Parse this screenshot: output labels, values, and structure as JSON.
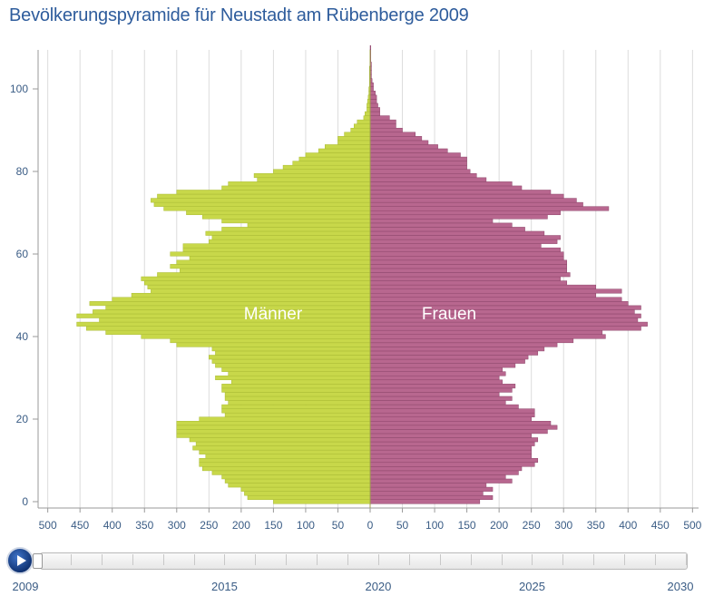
{
  "title": "Bevölkerungspyramide für Neustadt am Rübenberge 2009",
  "colors": {
    "male": "#c8d84a",
    "male_stroke": "#a9ba34",
    "female": "#b8678f",
    "female_stroke": "#8d456a",
    "axis_text": "#3a5c85",
    "grid": "#dcdcdc",
    "title": "#2e5c9c"
  },
  "chart_data": {
    "type": "bar",
    "orientation": "horizontal-pyramid",
    "title": "Bevölkerungspyramide für Neustadt am Rübenberge 2009",
    "xlim": [
      -500,
      500
    ],
    "ylim": [
      0,
      100
    ],
    "grid": true,
    "x_ticks": [
      500,
      450,
      400,
      350,
      300,
      250,
      200,
      150,
      100,
      50,
      0,
      50,
      100,
      150,
      200,
      250,
      300,
      350,
      400,
      450,
      500
    ],
    "y_ticks": [
      0,
      20,
      40,
      60,
      80,
      100
    ],
    "ages": [
      0,
      1,
      2,
      3,
      4,
      5,
      6,
      7,
      8,
      9,
      10,
      11,
      12,
      13,
      14,
      15,
      16,
      17,
      18,
      19,
      20,
      21,
      22,
      23,
      24,
      25,
      26,
      27,
      28,
      29,
      30,
      31,
      32,
      33,
      34,
      35,
      36,
      37,
      38,
      39,
      40,
      41,
      42,
      43,
      44,
      45,
      46,
      47,
      48,
      49,
      50,
      51,
      52,
      53,
      54,
      55,
      56,
      57,
      58,
      59,
      60,
      61,
      62,
      63,
      64,
      65,
      66,
      67,
      68,
      69,
      70,
      71,
      72,
      73,
      74,
      75,
      76,
      77,
      78,
      79,
      80,
      81,
      82,
      83,
      84,
      85,
      86,
      87,
      88,
      89,
      90,
      91,
      92,
      93,
      94,
      95,
      96,
      97,
      98,
      99,
      100,
      101,
      102,
      103,
      104,
      105,
      106,
      107,
      108,
      109,
      110
    ],
    "series": [
      {
        "name": "Männer",
        "values": [
          150,
          190,
          195,
          200,
          220,
          225,
          230,
          245,
          260,
          265,
          265,
          255,
          265,
          275,
          270,
          280,
          300,
          300,
          300,
          300,
          265,
          225,
          230,
          230,
          220,
          225,
          225,
          230,
          230,
          215,
          240,
          220,
          230,
          240,
          245,
          250,
          240,
          245,
          300,
          310,
          355,
          410,
          440,
          455,
          420,
          455,
          430,
          410,
          435,
          400,
          370,
          340,
          345,
          350,
          355,
          330,
          295,
          310,
          300,
          280,
          310,
          290,
          290,
          250,
          245,
          255,
          230,
          190,
          230,
          260,
          285,
          320,
          335,
          340,
          330,
          300,
          230,
          220,
          175,
          180,
          150,
          135,
          120,
          110,
          100,
          80,
          70,
          50,
          50,
          40,
          30,
          25,
          20,
          10,
          8,
          5,
          5,
          4,
          3,
          2,
          2,
          1,
          1,
          1,
          1,
          1,
          0,
          0,
          0,
          0,
          0
        ]
      },
      {
        "name": "Frauen",
        "values": [
          170,
          190,
          175,
          190,
          180,
          220,
          210,
          230,
          235,
          255,
          260,
          250,
          250,
          250,
          255,
          260,
          250,
          275,
          290,
          280,
          250,
          255,
          255,
          230,
          210,
          220,
          200,
          220,
          225,
          205,
          200,
          210,
          205,
          225,
          240,
          245,
          260,
          270,
          290,
          315,
          365,
          360,
          420,
          430,
          415,
          420,
          410,
          420,
          400,
          390,
          350,
          390,
          350,
          305,
          295,
          310,
          305,
          305,
          305,
          300,
          300,
          295,
          265,
          290,
          295,
          270,
          240,
          220,
          190,
          275,
          295,
          370,
          330,
          320,
          300,
          280,
          235,
          220,
          180,
          165,
          155,
          150,
          150,
          150,
          140,
          120,
          105,
          90,
          80,
          70,
          50,
          40,
          40,
          30,
          15,
          15,
          12,
          10,
          10,
          8,
          5,
          5,
          3,
          2,
          2,
          2,
          2,
          1,
          1,
          1,
          1
        ]
      }
    ],
    "annotations": [
      "Männer",
      "Frauen"
    ]
  },
  "timeline": {
    "labels": [
      "2009",
      "2015",
      "2020",
      "2025",
      "2030"
    ],
    "start_year": 2009,
    "end_year": 2030,
    "current_year": 2009,
    "play_icon": "play-icon"
  }
}
